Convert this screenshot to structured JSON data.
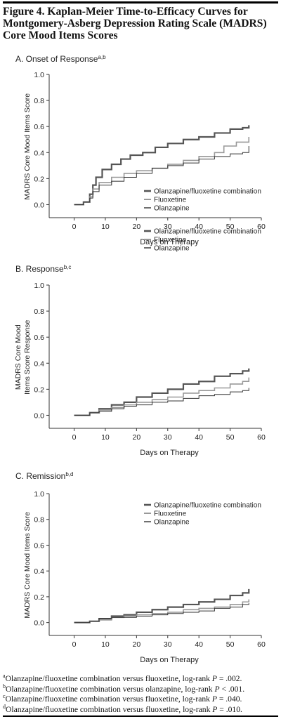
{
  "figure": {
    "title_lines": [
      "Figure 4. Kaplan-Meier Time-to-Efficacy Curves for",
      "Montgomery-Asberg Depression Rating Scale (MADRS)",
      "Core Mood Items Scores"
    ]
  },
  "chart_data": [
    {
      "type": "line",
      "panel": "A",
      "title": "A. Onset of Response",
      "title_sup": "a,b",
      "xlabel": "Days on Therapy",
      "ylabel_lines": [
        "MADRS Core Mood Items Score"
      ],
      "xlim": [
        -8,
        60
      ],
      "ylim": [
        -0.1,
        1.0
      ],
      "x_ticks": [
        "0",
        "10",
        "20",
        "30",
        "40",
        "50",
        "60"
      ],
      "y_ticks": [
        "0.0",
        "0.2",
        "0.4",
        "0.6",
        "0.8",
        "1.0"
      ],
      "legend_position": "lower-right",
      "series": [
        {
          "name": "Olanzapine/fluoxetine combination",
          "color": "#555555",
          "width": 2.2,
          "points": [
            [
              0,
              0
            ],
            [
              3,
              0.02
            ],
            [
              5,
              0.08
            ],
            [
              6,
              0.15
            ],
            [
              7,
              0.21
            ],
            [
              9,
              0.27
            ],
            [
              12,
              0.31
            ],
            [
              15,
              0.35
            ],
            [
              18,
              0.38
            ],
            [
              22,
              0.4
            ],
            [
              26,
              0.44
            ],
            [
              30,
              0.47
            ],
            [
              35,
              0.5
            ],
            [
              40,
              0.52
            ],
            [
              45,
              0.55
            ],
            [
              50,
              0.58
            ],
            [
              54,
              0.59
            ],
            [
              56,
              0.61
            ]
          ]
        },
        {
          "name": "Fluoxetine",
          "color": "#999999",
          "width": 1.6,
          "points": [
            [
              0,
              0
            ],
            [
              3,
              0.02
            ],
            [
              5,
              0.06
            ],
            [
              6,
              0.12
            ],
            [
              8,
              0.17
            ],
            [
              12,
              0.21
            ],
            [
              16,
              0.24
            ],
            [
              20,
              0.26
            ],
            [
              25,
              0.28
            ],
            [
              30,
              0.31
            ],
            [
              35,
              0.34
            ],
            [
              40,
              0.37
            ],
            [
              45,
              0.4
            ],
            [
              48,
              0.45
            ],
            [
              52,
              0.48
            ],
            [
              56,
              0.52
            ]
          ]
        },
        {
          "name": "Olanzapine",
          "color": "#333333",
          "width": 1.0,
          "points": [
            [
              0,
              0
            ],
            [
              3,
              0.02
            ],
            [
              5,
              0.05
            ],
            [
              6,
              0.1
            ],
            [
              8,
              0.15
            ],
            [
              12,
              0.18
            ],
            [
              16,
              0.21
            ],
            [
              20,
              0.24
            ],
            [
              25,
              0.28
            ],
            [
              30,
              0.3
            ],
            [
              35,
              0.32
            ],
            [
              40,
              0.35
            ],
            [
              45,
              0.37
            ],
            [
              50,
              0.39
            ],
            [
              54,
              0.4
            ],
            [
              56,
              0.45
            ]
          ]
        }
      ]
    },
    {
      "type": "line",
      "panel": "B",
      "title": "B. Response",
      "title_sup": "b,c",
      "xlabel": "Days on Therapy",
      "ylabel_lines": [
        "MADRS Core Mood",
        "Items Score Response"
      ],
      "xlim": [
        -8,
        60
      ],
      "ylim": [
        -0.1,
        1.0
      ],
      "x_ticks": [
        "0",
        "10",
        "20",
        "30",
        "40",
        "50",
        "60"
      ],
      "y_ticks": [
        "0.0",
        "0.2",
        "0.4",
        "0.6",
        "0.8",
        "1.0"
      ],
      "legend_position": "top-right",
      "series": [
        {
          "name": "Olanzapine/fluoxetine combination",
          "color": "#555555",
          "width": 2.2,
          "points": [
            [
              0,
              0
            ],
            [
              5,
              0.02
            ],
            [
              8,
              0.05
            ],
            [
              12,
              0.08
            ],
            [
              16,
              0.1
            ],
            [
              20,
              0.14
            ],
            [
              25,
              0.17
            ],
            [
              30,
              0.2
            ],
            [
              35,
              0.24
            ],
            [
              40,
              0.26
            ],
            [
              45,
              0.3
            ],
            [
              50,
              0.32
            ],
            [
              54,
              0.34
            ],
            [
              56,
              0.36
            ]
          ]
        },
        {
          "name": "Fluoxetine",
          "color": "#999999",
          "width": 1.6,
          "points": [
            [
              0,
              0
            ],
            [
              5,
              0.02
            ],
            [
              8,
              0.04
            ],
            [
              12,
              0.06
            ],
            [
              16,
              0.08
            ],
            [
              20,
              0.1
            ],
            [
              25,
              0.12
            ],
            [
              30,
              0.14
            ],
            [
              35,
              0.17
            ],
            [
              40,
              0.19
            ],
            [
              45,
              0.21
            ],
            [
              50,
              0.24
            ],
            [
              54,
              0.26
            ],
            [
              56,
              0.29
            ]
          ]
        },
        {
          "name": "Olanzapine",
          "color": "#333333",
          "width": 1.0,
          "points": [
            [
              0,
              0
            ],
            [
              5,
              0.02
            ],
            [
              8,
              0.03
            ],
            [
              12,
              0.05
            ],
            [
              16,
              0.07
            ],
            [
              20,
              0.08
            ],
            [
              25,
              0.1
            ],
            [
              30,
              0.11
            ],
            [
              35,
              0.13
            ],
            [
              40,
              0.15
            ],
            [
              45,
              0.16
            ],
            [
              50,
              0.18
            ],
            [
              54,
              0.19
            ],
            [
              56,
              0.21
            ]
          ]
        }
      ]
    },
    {
      "type": "line",
      "panel": "C",
      "title": "C. Remission",
      "title_sup": "b,d",
      "xlabel": "Days on Therapy",
      "ylabel_lines": [
        "MADRS Core Mood Items Score"
      ],
      "xlim": [
        -8,
        60
      ],
      "ylim": [
        -0.1,
        1.0
      ],
      "x_ticks": [
        "0",
        "10",
        "20",
        "30",
        "40",
        "50",
        "60"
      ],
      "y_ticks": [
        "0.0",
        "0.2",
        "0.4",
        "0.6",
        "0.8",
        "1.0"
      ],
      "legend_position": "top-right",
      "series": [
        {
          "name": "Olanzapine/fluoxetine combination",
          "color": "#555555",
          "width": 2.2,
          "points": [
            [
              0,
              0
            ],
            [
              5,
              0.01
            ],
            [
              8,
              0.03
            ],
            [
              12,
              0.05
            ],
            [
              16,
              0.06
            ],
            [
              20,
              0.08
            ],
            [
              25,
              0.1
            ],
            [
              30,
              0.12
            ],
            [
              35,
              0.14
            ],
            [
              40,
              0.16
            ],
            [
              45,
              0.18
            ],
            [
              50,
              0.21
            ],
            [
              54,
              0.23
            ],
            [
              56,
              0.26
            ]
          ]
        },
        {
          "name": "Fluoxetine",
          "color": "#999999",
          "width": 1.6,
          "points": [
            [
              0,
              0
            ],
            [
              5,
              0.01
            ],
            [
              8,
              0.02
            ],
            [
              12,
              0.04
            ],
            [
              16,
              0.05
            ],
            [
              20,
              0.06
            ],
            [
              25,
              0.07
            ],
            [
              30,
              0.08
            ],
            [
              35,
              0.1
            ],
            [
              40,
              0.11
            ],
            [
              45,
              0.12
            ],
            [
              50,
              0.14
            ],
            [
              54,
              0.16
            ],
            [
              56,
              0.18
            ]
          ]
        },
        {
          "name": "Olanzapine",
          "color": "#333333",
          "width": 1.0,
          "points": [
            [
              0,
              0
            ],
            [
              5,
              0.01
            ],
            [
              8,
              0.03
            ],
            [
              12,
              0.04
            ],
            [
              16,
              0.04
            ],
            [
              20,
              0.05
            ],
            [
              25,
              0.06
            ],
            [
              30,
              0.07
            ],
            [
              35,
              0.08
            ],
            [
              40,
              0.09
            ],
            [
              45,
              0.11
            ],
            [
              50,
              0.12
            ],
            [
              54,
              0.14
            ],
            [
              56,
              0.15
            ]
          ]
        }
      ]
    }
  ],
  "footnotes": [
    {
      "marker": "a",
      "text": "Olanzapine/fluoxetine combination versus fluoxetine, log-rank",
      "p_label": "P",
      "p_value": " = .002."
    },
    {
      "marker": "b",
      "text": "Olanzapine/fluoxetine combination versus olanzapine, log-rank",
      "p_label": "P",
      "p_value": " < .001."
    },
    {
      "marker": "c",
      "text": "Olanzapine/fluoxetine combination versus fluoxetine, log-rank",
      "p_label": "P",
      "p_value": " = .040."
    },
    {
      "marker": "d",
      "text": "Olanzapine/fluoxetine combination versus fluoxetine, log-rank",
      "p_label": "P",
      "p_value": " = .010."
    }
  ]
}
